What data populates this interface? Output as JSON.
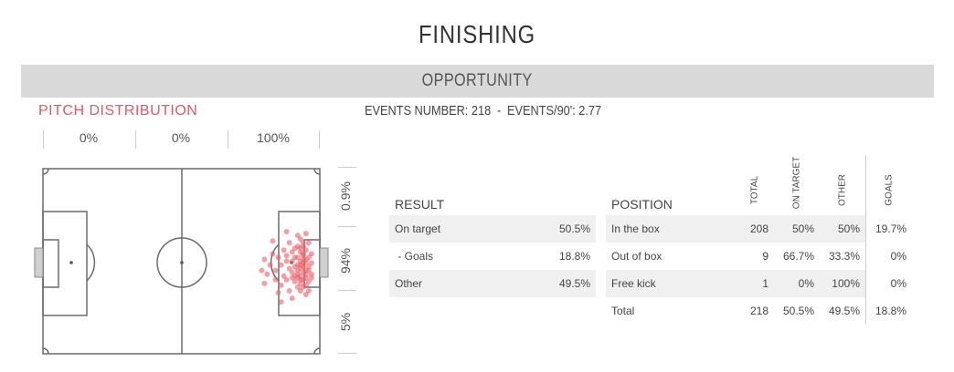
{
  "title": "FINISHING",
  "banner": "OPPORTUNITY",
  "pitch_label": "PITCH DISTRIBUTION",
  "events": {
    "number_label": "EVENTS NUMBER: 218",
    "separator": "-",
    "per90_label": "EVENTS/90': 2.77"
  },
  "zones": [
    "0%",
    "0%",
    "100%"
  ],
  "vertical_zones": [
    "0.9%",
    "94%",
    "5%"
  ],
  "colors": {
    "shot": "#e8606a",
    "accent": "#e05a60",
    "banner": "#d9d9d9"
  },
  "result_table": {
    "header": "RESULT",
    "rows": [
      {
        "label": "On target",
        "value": "50.5%"
      },
      {
        "label": " - Goals",
        "value": "18.8%"
      },
      {
        "label": "Other",
        "value": "49.5%"
      }
    ]
  },
  "position_table": {
    "header": "POSITION",
    "columns": [
      "TOTAL",
      "ON TARGET",
      "OTHER",
      "GOALS"
    ],
    "rows": [
      {
        "label": "In the box",
        "total": "208",
        "on_target": "50%",
        "other": "50%",
        "goals": "19.7%"
      },
      {
        "label": "Out of box",
        "total": "9",
        "on_target": "66.7%",
        "other": "33.3%",
        "goals": "0%"
      },
      {
        "label": "Free kick",
        "total": "1",
        "on_target": "0%",
        "other": "100%",
        "goals": "0%"
      },
      {
        "label": "Total",
        "total": "218",
        "on_target": "50.5%",
        "other": "49.5%",
        "goals": "18.8%"
      }
    ]
  },
  "chart_data": {
    "type": "scatter",
    "title": "PITCH DISTRIBUTION",
    "xlim": [
      0,
      100
    ],
    "ylim": [
      0,
      100
    ],
    "points": [
      [
        93,
        38
      ],
      [
        94,
        40
      ],
      [
        92,
        42
      ],
      [
        95,
        44
      ],
      [
        93,
        45
      ],
      [
        94,
        47
      ],
      [
        91,
        48
      ],
      [
        95,
        49
      ],
      [
        93,
        50
      ],
      [
        94,
        51
      ],
      [
        92,
        52
      ],
      [
        96,
        53
      ],
      [
        93,
        54
      ],
      [
        95,
        55
      ],
      [
        94,
        56
      ],
      [
        92,
        57
      ],
      [
        93,
        58
      ],
      [
        95,
        59
      ],
      [
        94,
        60
      ],
      [
        91,
        61
      ],
      [
        93,
        62
      ],
      [
        95,
        63
      ],
      [
        92,
        64
      ],
      [
        94,
        46
      ],
      [
        96,
        48
      ],
      [
        90,
        50
      ],
      [
        97,
        51
      ],
      [
        91,
        53
      ],
      [
        96,
        55
      ],
      [
        90,
        56
      ],
      [
        97,
        57
      ],
      [
        92,
        59
      ],
      [
        96,
        61
      ],
      [
        90,
        45
      ],
      [
        94,
        42
      ],
      [
        93,
        66
      ],
      [
        95,
        68
      ],
      [
        92,
        36
      ],
      [
        89,
        40
      ],
      [
        88,
        47
      ],
      [
        89,
        54
      ],
      [
        88,
        60
      ],
      [
        87,
        44
      ],
      [
        86,
        52
      ],
      [
        87,
        58
      ],
      [
        85,
        48
      ],
      [
        84,
        55
      ],
      [
        86,
        63
      ],
      [
        83,
        46
      ],
      [
        84,
        60
      ],
      [
        82,
        52
      ],
      [
        81,
        57
      ],
      [
        80,
        49
      ],
      [
        85,
        67
      ],
      [
        83,
        39
      ],
      [
        88,
        34
      ],
      [
        90,
        70
      ],
      [
        86,
        72
      ],
      [
        80,
        62
      ],
      [
        79,
        55
      ],
      [
        95,
        35
      ],
      [
        96,
        40
      ],
      [
        97,
        46
      ],
      [
        97,
        59
      ],
      [
        96,
        66
      ],
      [
        91,
        43
      ],
      [
        93,
        43
      ],
      [
        94,
        53
      ],
      [
        92,
        55
      ],
      [
        95,
        57
      ],
      [
        93,
        60
      ],
      [
        92,
        48
      ],
      [
        94,
        49
      ],
      [
        93,
        52
      ],
      [
        95,
        51
      ],
      [
        91,
        58
      ],
      [
        94,
        64
      ],
      [
        89,
        66
      ],
      [
        88,
        50
      ],
      [
        90,
        59
      ]
    ]
  }
}
